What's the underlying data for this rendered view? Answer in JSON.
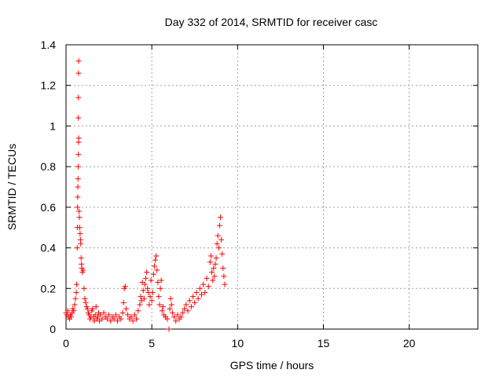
{
  "chart_data": {
    "type": "scatter",
    "title": "Day 332 of 2014, SRMTID for receiver casc",
    "xlabel": "GPS time / hours",
    "ylabel": "SRMTID / TECUs",
    "xlim": [
      0,
      24
    ],
    "ylim": [
      0,
      1.4
    ],
    "xticks": [
      0,
      5,
      10,
      15,
      20
    ],
    "xtick_labels": [
      "0",
      "5",
      "10",
      "15",
      "20"
    ],
    "yticks": [
      0,
      0.2,
      0.4,
      0.6,
      0.8,
      1.0,
      1.2,
      1.4
    ],
    "ytick_labels": [
      "0",
      "0.2",
      "0.4",
      "0.6",
      "0.8",
      "1",
      "1.2",
      "1.4"
    ],
    "grid": true,
    "marker": "+",
    "series": [
      {
        "name": "SRMTID",
        "color": "#ff0000",
        "points": [
          [
            0.0,
            0.08
          ],
          [
            0.05,
            0.07
          ],
          [
            0.1,
            0.09
          ],
          [
            0.15,
            0.06
          ],
          [
            0.2,
            0.05
          ],
          [
            0.25,
            0.07
          ],
          [
            0.3,
            0.06
          ],
          [
            0.35,
            0.08
          ],
          [
            0.4,
            0.1
          ],
          [
            0.45,
            0.09
          ],
          [
            0.5,
            0.12
          ],
          [
            0.55,
            0.15
          ],
          [
            0.6,
            0.18
          ],
          [
            0.62,
            0.22
          ],
          [
            0.65,
            0.4
          ],
          [
            0.66,
            0.5
          ],
          [
            0.67,
            0.6
          ],
          [
            0.68,
            0.65
          ],
          [
            0.69,
            0.7
          ],
          [
            0.7,
            0.74
          ],
          [
            0.71,
            0.8
          ],
          [
            0.72,
            0.86
          ],
          [
            0.73,
            0.92
          ],
          [
            0.74,
            0.94
          ],
          [
            0.72,
            1.04
          ],
          [
            0.72,
            1.14
          ],
          [
            0.73,
            1.26
          ],
          [
            0.74,
            1.32
          ],
          [
            0.76,
            0.58
          ],
          [
            0.78,
            0.55
          ],
          [
            0.8,
            0.5
          ],
          [
            0.82,
            0.47
          ],
          [
            0.84,
            0.44
          ],
          [
            0.86,
            0.42
          ],
          [
            0.88,
            0.35
          ],
          [
            0.9,
            0.32
          ],
          [
            0.92,
            0.3
          ],
          [
            0.95,
            0.28
          ],
          [
            1.0,
            0.29
          ],
          [
            1.05,
            0.2
          ],
          [
            1.1,
            0.15
          ],
          [
            1.15,
            0.13
          ],
          [
            1.2,
            0.11
          ],
          [
            1.25,
            0.1
          ],
          [
            1.3,
            0.08
          ],
          [
            1.35,
            0.07
          ],
          [
            1.4,
            0.05
          ],
          [
            1.45,
            0.06
          ],
          [
            1.5,
            0.09
          ],
          [
            1.55,
            0.1
          ],
          [
            1.6,
            0.06
          ],
          [
            1.65,
            0.04
          ],
          [
            1.7,
            0.07
          ],
          [
            1.75,
            0.11
          ],
          [
            1.8,
            0.05
          ],
          [
            1.85,
            0.06
          ],
          [
            1.9,
            0.08
          ],
          [
            1.95,
            0.04
          ],
          [
            2.0,
            0.07
          ],
          [
            2.1,
            0.05
          ],
          [
            2.2,
            0.08
          ],
          [
            2.3,
            0.06
          ],
          [
            2.4,
            0.05
          ],
          [
            2.5,
            0.07
          ],
          [
            2.6,
            0.04
          ],
          [
            2.7,
            0.06
          ],
          [
            2.8,
            0.05
          ],
          [
            2.9,
            0.07
          ],
          [
            3.0,
            0.04
          ],
          [
            3.1,
            0.06
          ],
          [
            3.2,
            0.05
          ],
          [
            3.3,
            0.08
          ],
          [
            3.35,
            0.13
          ],
          [
            3.4,
            0.2
          ],
          [
            3.45,
            0.21
          ],
          [
            3.5,
            0.1
          ],
          [
            3.6,
            0.07
          ],
          [
            3.7,
            0.05
          ],
          [
            3.8,
            0.06
          ],
          [
            3.9,
            0.04
          ],
          [
            4.0,
            0.07
          ],
          [
            4.1,
            0.05
          ],
          [
            4.2,
            0.09
          ],
          [
            4.3,
            0.12
          ],
          [
            4.35,
            0.16
          ],
          [
            4.4,
            0.14
          ],
          [
            4.45,
            0.23
          ],
          [
            4.5,
            0.19
          ],
          [
            4.55,
            0.15
          ],
          [
            4.6,
            0.22
          ],
          [
            4.65,
            0.25
          ],
          [
            4.7,
            0.28
          ],
          [
            4.75,
            0.2
          ],
          [
            4.8,
            0.18
          ],
          [
            4.85,
            0.12
          ],
          [
            4.9,
            0.16
          ],
          [
            4.95,
            0.24
          ],
          [
            5.0,
            0.14
          ],
          [
            5.05,
            0.18
          ],
          [
            5.1,
            0.27
          ],
          [
            5.15,
            0.31
          ],
          [
            5.2,
            0.34
          ],
          [
            5.25,
            0.36
          ],
          [
            5.3,
            0.29
          ],
          [
            5.35,
            0.23
          ],
          [
            5.4,
            0.16
          ],
          [
            5.45,
            0.12
          ],
          [
            5.5,
            0.2
          ],
          [
            5.55,
            0.24
          ],
          [
            5.6,
            0.09
          ],
          [
            5.65,
            0.11
          ],
          [
            5.7,
            0.07
          ],
          [
            5.8,
            0.06
          ],
          [
            5.9,
            0.05
          ],
          [
            6.0,
            0.0
          ],
          [
            6.05,
            0.1
          ],
          [
            6.1,
            0.15
          ],
          [
            6.15,
            0.12
          ],
          [
            6.2,
            0.08
          ],
          [
            6.3,
            0.06
          ],
          [
            6.4,
            0.04
          ],
          [
            6.5,
            0.07
          ],
          [
            6.6,
            0.05
          ],
          [
            6.7,
            0.06
          ],
          [
            6.8,
            0.08
          ],
          [
            6.9,
            0.1
          ],
          [
            7.0,
            0.12
          ],
          [
            7.1,
            0.09
          ],
          [
            7.2,
            0.14
          ],
          [
            7.3,
            0.11
          ],
          [
            7.4,
            0.16
          ],
          [
            7.5,
            0.13
          ],
          [
            7.6,
            0.18
          ],
          [
            7.7,
            0.15
          ],
          [
            7.8,
            0.2
          ],
          [
            7.9,
            0.17
          ],
          [
            8.0,
            0.22
          ],
          [
            8.1,
            0.18
          ],
          [
            8.2,
            0.25
          ],
          [
            8.3,
            0.21
          ],
          [
            8.4,
            0.33
          ],
          [
            8.45,
            0.36
          ],
          [
            8.5,
            0.28
          ],
          [
            8.55,
            0.24
          ],
          [
            8.6,
            0.3
          ],
          [
            8.65,
            0.26
          ],
          [
            8.7,
            0.32
          ],
          [
            8.75,
            0.35
          ],
          [
            8.8,
            0.42
          ],
          [
            8.85,
            0.46
          ],
          [
            8.9,
            0.4
          ],
          [
            8.95,
            0.51
          ],
          [
            9.0,
            0.55
          ],
          [
            9.05,
            0.44
          ],
          [
            9.1,
            0.37
          ],
          [
            9.15,
            0.3
          ],
          [
            9.2,
            0.26
          ],
          [
            9.25,
            0.22
          ]
        ]
      }
    ]
  }
}
